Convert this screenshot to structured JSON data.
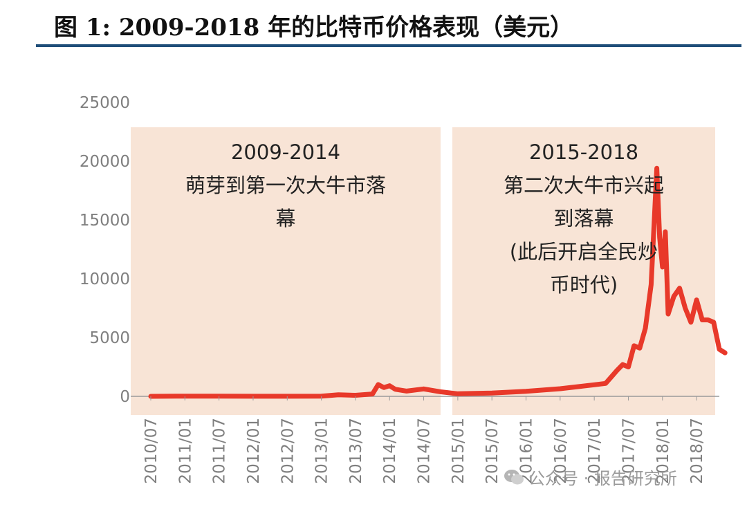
{
  "title": "图 1: 2009-2018 年的比特币价格表现（美元）",
  "watermark": "公众号 · 报告研究所",
  "colors": {
    "line": "#e8392a",
    "period_fill": "#f8e4d6",
    "rule": "#1f4e79",
    "axis": "#7f7f7f"
  },
  "chart_data": {
    "type": "line",
    "title": "图 1: 2009-2018 年的比特币价格表现（美元）",
    "xlabel": "",
    "ylabel": "",
    "ylim": [
      0,
      25000
    ],
    "yticks": [
      0,
      5000,
      10000,
      15000,
      20000,
      25000
    ],
    "xticks": [
      "2010/07",
      "2011/01",
      "2011/07",
      "2012/01",
      "2012/07",
      "2013/01",
      "2013/07",
      "2014/01",
      "2014/07",
      "2015/01",
      "2015/07",
      "2016/01",
      "2016/07",
      "2017/01",
      "2017/07",
      "2018/01",
      "2018/07"
    ],
    "grid": false,
    "legend": "none",
    "periods": [
      {
        "label": "2009-2014",
        "text_lines": [
          "萌芽到第一次大牛市落",
          "幕"
        ],
        "start": "2010/07",
        "end": "2014/12"
      },
      {
        "label": "2015-2018",
        "text_lines": [
          "第二次大牛市兴起",
          "到落幕",
          "(此后开启全民炒",
          "币时代)"
        ],
        "start": "2015/01",
        "end": "2018/12"
      }
    ],
    "series": [
      {
        "x": [
          "2010/07",
          "2011/01",
          "2011/07",
          "2012/01",
          "2012/07",
          "2013/01",
          "2013/04",
          "2013/07",
          "2013/10",
          "2013/11",
          "2013/12",
          "2014/01",
          "2014/02",
          "2014/04",
          "2014/07",
          "2014/10",
          "2015/01",
          "2015/07",
          "2016/01",
          "2016/07",
          "2017/01",
          "2017/03",
          "2017/05",
          "2017/06",
          "2017/07",
          "2017/08",
          "2017/09",
          "2017/10",
          "2017/11",
          "2017/12",
          "2017/12",
          "2018/01",
          "2018/01",
          "2018/02",
          "2018/03",
          "2018/04",
          "2018/05",
          "2018/06",
          "2018/07",
          "2018/08",
          "2018/09",
          "2018/10",
          "2018/11",
          "2018/12"
        ],
        "y": [
          0,
          15,
          14,
          6,
          8,
          14,
          130,
          90,
          200,
          1000,
          750,
          900,
          600,
          450,
          630,
          380,
          220,
          280,
          430,
          650,
          980,
          1100,
          2200,
          2700,
          2500,
          4300,
          4100,
          5800,
          9500,
          19400,
          13500,
          11000,
          14000,
          7000,
          8500,
          9200,
          7500,
          6300,
          8200,
          6500,
          6500,
          6300,
          4000,
          3700
        ]
      }
    ]
  }
}
